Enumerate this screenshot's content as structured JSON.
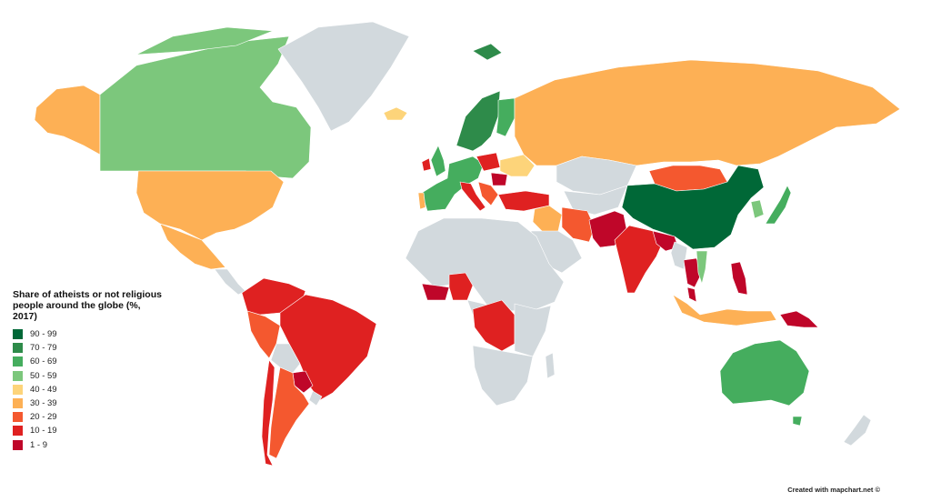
{
  "legend": {
    "title": "Share of atheists or not religious people around the globe (%, 2017)",
    "items": [
      {
        "label": "90 - 99",
        "color": "#006837"
      },
      {
        "label": "70 - 79",
        "color": "#2e8b4a"
      },
      {
        "label": "60 - 69",
        "color": "#45ad5e"
      },
      {
        "label": "50 - 59",
        "color": "#7cc77c"
      },
      {
        "label": "40 - 49",
        "color": "#fdd47a"
      },
      {
        "label": "30 - 39",
        "color": "#fdb055"
      },
      {
        "label": "20 - 29",
        "color": "#f4582f"
      },
      {
        "label": "10 - 19",
        "color": "#df2121"
      },
      {
        "label": "1 - 9",
        "color": "#bf0629"
      }
    ]
  },
  "no_data_color": "#d2d9dd",
  "credit": "Created with mapchart.net ©",
  "regions": [
    {
      "name": "Canada",
      "bin": "50 - 59"
    },
    {
      "name": "Alaska",
      "bin": "30 - 39"
    },
    {
      "name": "United States",
      "bin": "30 - 39"
    },
    {
      "name": "Mexico",
      "bin": "30 - 39"
    },
    {
      "name": "Greenland",
      "bin": "none"
    },
    {
      "name": "Iceland",
      "bin": "40 - 49"
    },
    {
      "name": "Colombia / Venezuela / Ecuador",
      "bin": "10 - 19"
    },
    {
      "name": "Peru",
      "bin": "20 - 29"
    },
    {
      "name": "Brazil",
      "bin": "10 - 19"
    },
    {
      "name": "Bolivia",
      "bin": "none"
    },
    {
      "name": "Paraguay",
      "bin": "1 - 9"
    },
    {
      "name": "Argentina",
      "bin": "20 - 29"
    },
    {
      "name": "Chile",
      "bin": "10 - 19"
    },
    {
      "name": "Norway / Sweden",
      "bin": "70 - 79"
    },
    {
      "name": "Finland",
      "bin": "60 - 69"
    },
    {
      "name": "United Kingdom",
      "bin": "60 - 69"
    },
    {
      "name": "Ireland",
      "bin": "10 - 19"
    },
    {
      "name": "France / Spain / Germany",
      "bin": "60 - 69"
    },
    {
      "name": "Portugal",
      "bin": "30 - 39"
    },
    {
      "name": "Italy",
      "bin": "10 - 19"
    },
    {
      "name": "Poland",
      "bin": "10 - 19"
    },
    {
      "name": "Ukraine",
      "bin": "40 - 49"
    },
    {
      "name": "Romania",
      "bin": "1 - 9"
    },
    {
      "name": "Balkans",
      "bin": "20 - 29"
    },
    {
      "name": "Turkey",
      "bin": "10 - 19"
    },
    {
      "name": "Russia",
      "bin": "30 - 39"
    },
    {
      "name": "Kazakhstan",
      "bin": "none"
    },
    {
      "name": "Mongolia",
      "bin": "20 - 29"
    },
    {
      "name": "China",
      "bin": "90 - 99"
    },
    {
      "name": "Japan",
      "bin": "60 - 69"
    },
    {
      "name": "South Korea",
      "bin": "50 - 59"
    },
    {
      "name": "Iraq / Syria",
      "bin": "30 - 39"
    },
    {
      "name": "Iran",
      "bin": "20 - 29"
    },
    {
      "name": "Pakistan / Afghanistan",
      "bin": "1 - 9"
    },
    {
      "name": "India",
      "bin": "10 - 19"
    },
    {
      "name": "Bangladesh / Nepal",
      "bin": "1 - 9"
    },
    {
      "name": "Thailand",
      "bin": "1 - 9"
    },
    {
      "name": "Vietnam",
      "bin": "50 - 59"
    },
    {
      "name": "Malaysia",
      "bin": "1 - 9"
    },
    {
      "name": "Philippines",
      "bin": "1 - 9"
    },
    {
      "name": "Indonesia",
      "bin": "30 - 39"
    },
    {
      "name": "Papua New Guinea",
      "bin": "1 - 9"
    },
    {
      "name": "Australia",
      "bin": "60 - 69"
    },
    {
      "name": "New Zealand",
      "bin": "none"
    },
    {
      "name": "Nigeria",
      "bin": "10 - 19"
    },
    {
      "name": "Ivory Coast / Ghana",
      "bin": "1 - 9"
    },
    {
      "name": "DR Congo",
      "bin": "10 - 19"
    },
    {
      "name": "Africa (other)",
      "bin": "none"
    },
    {
      "name": "Saudi Arabia",
      "bin": "none"
    }
  ]
}
